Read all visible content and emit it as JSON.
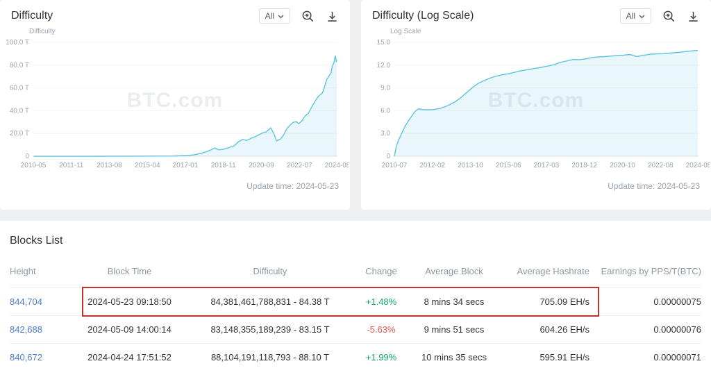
{
  "colors": {
    "line": "#66c6de",
    "fill": "rgba(110,201,223,0.15)",
    "green": "#10a96e",
    "red": "#e25553",
    "link": "#4a7bd0",
    "highlight_border": "#c8302e"
  },
  "charts": [
    {
      "title": "Difficulty",
      "range": "All",
      "axis_label": "Difficulty",
      "watermark": "BTC.com",
      "update_time": "Update time: 2024-05-23",
      "chart_data": {
        "type": "area",
        "title": "Difficulty",
        "ylabel": "Difficulty",
        "xlim": [
          2010.33,
          2024.45
        ],
        "ylim": [
          0,
          100
        ],
        "yticks": [
          {
            "v": 0,
            "label": "0"
          },
          {
            "v": 20,
            "label": "20.0 T"
          },
          {
            "v": 40,
            "label": "40.0 T"
          },
          {
            "v": 60,
            "label": "60.0 T"
          },
          {
            "v": 80,
            "label": "80.0 T"
          },
          {
            "v": 100,
            "label": "100.0 T"
          }
        ],
        "xtick_labels": [
          "2010-05",
          "2011-11",
          "2013-08",
          "2015-04",
          "2017-01",
          "2018-11",
          "2020-09",
          "2022-07",
          "2024-05"
        ],
        "points": [
          [
            2010.35,
            0
          ],
          [
            2013,
            0.005
          ],
          [
            2015,
            0.05
          ],
          [
            2016,
            0.15
          ],
          [
            2016.8,
            0.25
          ],
          [
            2017.2,
            0.5
          ],
          [
            2017.6,
            0.8
          ],
          [
            2017.9,
            1.6
          ],
          [
            2018.2,
            3.0
          ],
          [
            2018.5,
            4.9
          ],
          [
            2018.75,
            7.2
          ],
          [
            2018.95,
            5.6
          ],
          [
            2019.15,
            6.1
          ],
          [
            2019.4,
            7.5
          ],
          [
            2019.65,
            9.0
          ],
          [
            2019.85,
            12.7
          ],
          [
            2020.05,
            14.7
          ],
          [
            2020.25,
            13.9
          ],
          [
            2020.45,
            15.8
          ],
          [
            2020.65,
            17.3
          ],
          [
            2020.85,
            19.3
          ],
          [
            2021.0,
            20.6
          ],
          [
            2021.15,
            21.4
          ],
          [
            2021.35,
            25.0
          ],
          [
            2021.5,
            19.9
          ],
          [
            2021.62,
            13.5
          ],
          [
            2021.8,
            15.0
          ],
          [
            2021.95,
            18.7
          ],
          [
            2022.1,
            24.2
          ],
          [
            2022.25,
            27.3
          ],
          [
            2022.4,
            29.8
          ],
          [
            2022.55,
            30.3
          ],
          [
            2022.65,
            28.6
          ],
          [
            2022.8,
            31.0
          ],
          [
            2022.95,
            35.4
          ],
          [
            2023.1,
            37.6
          ],
          [
            2023.25,
            43.1
          ],
          [
            2023.4,
            47.9
          ],
          [
            2023.55,
            52.3
          ],
          [
            2023.65,
            53.9
          ],
          [
            2023.75,
            55.6
          ],
          [
            2023.85,
            61.0
          ],
          [
            2023.95,
            67.3
          ],
          [
            2024.05,
            70.3
          ],
          [
            2024.15,
            73.2
          ],
          [
            2024.22,
            79.5
          ],
          [
            2024.28,
            81.7
          ],
          [
            2024.33,
            86.4
          ],
          [
            2024.36,
            88.1
          ],
          [
            2024.4,
            83.1
          ],
          [
            2024.42,
            84.4
          ]
        ]
      }
    },
    {
      "title": "Difficulty (Log Scale)",
      "range": "All",
      "axis_label": "Log Scale",
      "watermark": "BTC.com",
      "update_time": "Update time: 2024-05-23",
      "chart_data": {
        "type": "area",
        "title": "Difficulty (Log Scale)",
        "ylabel": "Log Scale",
        "xlim": [
          2010.5,
          2024.45
        ],
        "ylim": [
          0,
          15
        ],
        "yticks": [
          {
            "v": 0,
            "label": "0"
          },
          {
            "v": 3,
            "label": "3.0"
          },
          {
            "v": 6,
            "label": "6.0"
          },
          {
            "v": 9,
            "label": "9.0"
          },
          {
            "v": 12,
            "label": "12.0"
          },
          {
            "v": 15,
            "label": "15.0"
          }
        ],
        "xtick_labels": [
          "2010-07",
          "2012-02",
          "2013-10",
          "2015-06",
          "2017-03",
          "2018-12",
          "2020-10",
          "2022-08",
          "2024-05"
        ],
        "points": [
          [
            2010.5,
            0
          ],
          [
            2010.58,
            1.2
          ],
          [
            2010.7,
            2.2
          ],
          [
            2010.85,
            3.1
          ],
          [
            2011.0,
            4.0
          ],
          [
            2011.15,
            4.7
          ],
          [
            2011.3,
            5.3
          ],
          [
            2011.45,
            5.9
          ],
          [
            2011.6,
            6.25
          ],
          [
            2011.8,
            6.15
          ],
          [
            2012.0,
            6.1
          ],
          [
            2012.3,
            6.15
          ],
          [
            2012.6,
            6.3
          ],
          [
            2012.9,
            6.6
          ],
          [
            2013.1,
            6.9
          ],
          [
            2013.3,
            7.2
          ],
          [
            2013.5,
            7.6
          ],
          [
            2013.7,
            8.1
          ],
          [
            2013.9,
            8.6
          ],
          [
            2014.1,
            9.1
          ],
          [
            2014.35,
            9.6
          ],
          [
            2014.6,
            9.95
          ],
          [
            2014.85,
            10.25
          ],
          [
            2015.1,
            10.5
          ],
          [
            2015.4,
            10.7
          ],
          [
            2015.7,
            10.85
          ],
          [
            2016.0,
            11.05
          ],
          [
            2016.3,
            11.25
          ],
          [
            2016.6,
            11.4
          ],
          [
            2016.9,
            11.55
          ],
          [
            2017.2,
            11.7
          ],
          [
            2017.5,
            11.85
          ],
          [
            2017.8,
            12.05
          ],
          [
            2018.1,
            12.35
          ],
          [
            2018.4,
            12.55
          ],
          [
            2018.7,
            12.75
          ],
          [
            2018.95,
            12.7
          ],
          [
            2019.2,
            12.8
          ],
          [
            2019.5,
            12.95
          ],
          [
            2019.8,
            13.08
          ],
          [
            2020.1,
            13.12
          ],
          [
            2020.4,
            13.18
          ],
          [
            2020.7,
            13.25
          ],
          [
            2021.0,
            13.31
          ],
          [
            2021.3,
            13.4
          ],
          [
            2021.62,
            13.13
          ],
          [
            2021.9,
            13.27
          ],
          [
            2022.2,
            13.43
          ],
          [
            2022.5,
            13.48
          ],
          [
            2022.8,
            13.5
          ],
          [
            2023.1,
            13.57
          ],
          [
            2023.4,
            13.65
          ],
          [
            2023.7,
            13.73
          ],
          [
            2023.95,
            13.82
          ],
          [
            2024.15,
            13.87
          ],
          [
            2024.33,
            13.94
          ],
          [
            2024.42,
            13.93
          ]
        ]
      }
    }
  ],
  "blocks": {
    "title": "Blocks List",
    "columns": [
      "Height",
      "Block Time",
      "Difficulty",
      "Change",
      "Average Block",
      "Average Hashrate",
      "Earnings by PPS/T(BTC)"
    ],
    "rows": [
      {
        "height": "844,704",
        "block_time": "2024-05-23 09:18:50",
        "difficulty": "84,381,461,788,831 - 84.38 T",
        "change": "+1.48%",
        "avg_block": "8 mins 34 secs",
        "avg_hashrate": "705.09 EH/s",
        "earnings": "0.00000075",
        "highlighted": true
      },
      {
        "height": "842,688",
        "block_time": "2024-05-09 14:00:14",
        "difficulty": "83,148,355,189,239 - 83.15 T",
        "change": "-5.63%",
        "avg_block": "9 mins 51 secs",
        "avg_hashrate": "604.26 EH/s",
        "earnings": "0.00000076",
        "highlighted": false
      },
      {
        "height": "840,672",
        "block_time": "2024-04-24 17:51:52",
        "difficulty": "88,104,191,118,793 - 88.10 T",
        "change": "+1.99%",
        "avg_block": "10 mins 35 secs",
        "avg_hashrate": "595.91 EH/s",
        "earnings": "0.00000071",
        "highlighted": false
      }
    ]
  }
}
